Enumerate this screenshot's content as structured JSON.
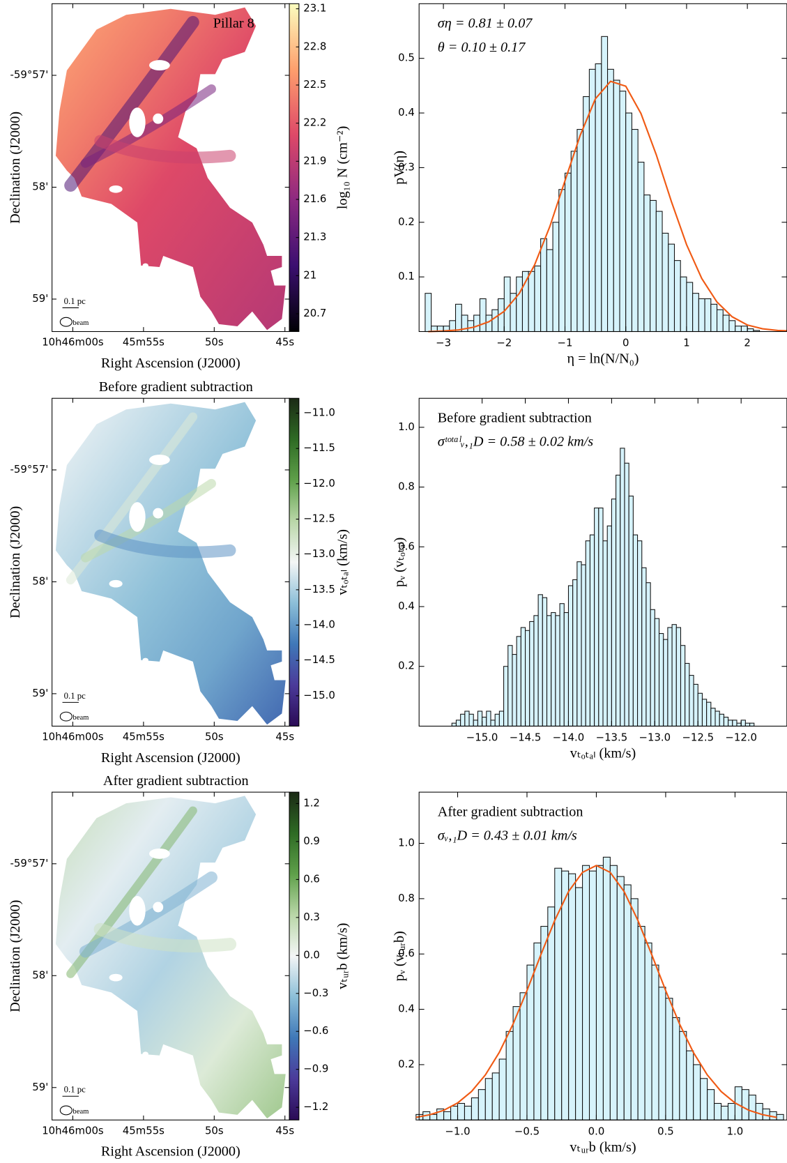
{
  "chart_data": [
    {
      "type": "map",
      "title": "Pillar 8",
      "title_position": "inside",
      "xlabel": "Right Ascension (J2000)",
      "ylabel": "Declination (J2000)",
      "xlim": [
        61.47,
        44.69
      ],
      "ylim": [
        -3599.29,
        -3596.36
      ],
      "xticks": [
        {
          "value": 60,
          "label": "10h46m00s"
        },
        {
          "value": 55,
          "label": "45m55s"
        },
        {
          "value": 50,
          "label": "50s"
        },
        {
          "value": 45,
          "label": "45s"
        }
      ],
      "yticks": [
        {
          "value": -3597,
          "label": "-59°57'"
        },
        {
          "value": -3598,
          "label": "58'"
        },
        {
          "value": -3599,
          "label": "59'"
        }
      ],
      "scalebar_label": "0.1 pc",
      "beam_label": "beam",
      "colorbar": {
        "label": "log₁₀ N (cm⁻²)",
        "clim": [
          20.56,
          23.14
        ],
        "ticks": [
          20.7,
          21.0,
          21.3,
          21.6,
          21.9,
          22.2,
          22.5,
          22.8,
          23.1
        ],
        "colormap": [
          "#000004",
          "#3b0f70",
          "#8c2981",
          "#de4968",
          "#fe9f6d",
          "#fcfdbf"
        ]
      }
    },
    {
      "type": "histogram",
      "xlabel": "η = ln(N/N₀)",
      "ylabel": "pV(η)",
      "annotations": [
        "ση = 0.81 ± 0.07",
        "θ = 0.10 ± 0.17"
      ],
      "color": "#d6f3fb",
      "edgecolor": "#111111",
      "xlim": [
        -3.4,
        2.65
      ],
      "ylim": [
        0,
        0.6
      ],
      "xticks": [
        {
          "value": -3,
          "label": "−3"
        },
        {
          "value": -2,
          "label": "−2"
        },
        {
          "value": -1,
          "label": "−1"
        },
        0,
        1,
        2
      ],
      "yticks": [
        0.1,
        0.2,
        0.3,
        0.4,
        0.5
      ],
      "bins": [
        -3.3,
        -3.2,
        -3.1,
        -3.0,
        -2.9,
        -2.8,
        -2.7,
        -2.6,
        -2.5,
        -2.4,
        -2.3,
        -2.2,
        -2.1,
        -2.0,
        -1.9,
        -1.8,
        -1.7,
        -1.6,
        -1.5,
        -1.4,
        -1.3,
        -1.2,
        -1.1,
        -1.0,
        -0.9,
        -0.8,
        -0.7,
        -0.6,
        -0.5,
        -0.4,
        -0.3,
        -0.2,
        -0.1,
        0.0,
        0.1,
        0.2,
        0.3,
        0.4,
        0.5,
        0.6,
        0.7,
        0.8,
        0.9,
        1.0,
        1.1,
        1.2,
        1.3,
        1.4,
        1.5,
        1.6,
        1.7,
        1.8,
        1.9,
        2.0,
        2.1,
        2.2
      ],
      "values": [
        0.07,
        0.01,
        0.01,
        0.01,
        0.02,
        0.05,
        0.03,
        0.02,
        0.03,
        0.06,
        0.03,
        0.04,
        0.06,
        0.1,
        0.07,
        0.1,
        0.11,
        0.11,
        0.12,
        0.17,
        0.15,
        0.2,
        0.26,
        0.29,
        0.33,
        0.37,
        0.43,
        0.48,
        0.49,
        0.54,
        0.48,
        0.46,
        0.44,
        0.4,
        0.37,
        0.31,
        0.25,
        0.24,
        0.22,
        0.18,
        0.16,
        0.13,
        0.1,
        0.09,
        0.07,
        0.06,
        0.06,
        0.05,
        0.04,
        0.03,
        0.02,
        0.01,
        0.01,
        0.005,
        0.002
      ],
      "fit": {
        "color": "#f05a14",
        "x": [
          -3.25,
          -3.0,
          -2.75,
          -2.5,
          -2.25,
          -2.0,
          -1.75,
          -1.5,
          -1.25,
          -1.0,
          -0.75,
          -0.5,
          -0.25,
          0.0,
          0.25,
          0.5,
          0.75,
          1.0,
          1.25,
          1.5,
          1.75,
          2.0,
          2.25,
          2.5,
          2.75
        ],
        "values": [
          0.0,
          0.001,
          0.003,
          0.008,
          0.018,
          0.037,
          0.07,
          0.122,
          0.192,
          0.276,
          0.359,
          0.426,
          0.458,
          0.449,
          0.399,
          0.324,
          0.238,
          0.159,
          0.097,
          0.054,
          0.027,
          0.012,
          0.005,
          0.002,
          0.001
        ]
      }
    },
    {
      "type": "map",
      "title": "Before gradient subtraction",
      "title_position": "above",
      "xlabel": "Right Ascension (J2000)",
      "ylabel": "Declination (J2000)",
      "xlim": [
        61.47,
        44.69
      ],
      "ylim": [
        -3599.29,
        -3596.36
      ],
      "xticks": [
        {
          "value": 60,
          "label": "10h46m00s"
        },
        {
          "value": 55,
          "label": "45m55s"
        },
        {
          "value": 50,
          "label": "50s"
        },
        {
          "value": 45,
          "label": "45s"
        }
      ],
      "yticks": [
        {
          "value": -3597,
          "label": "-59°57'"
        },
        {
          "value": -3598,
          "label": "58'"
        },
        {
          "value": -3599,
          "label": "59'"
        }
      ],
      "scalebar_label": "0.1 pc",
      "beam_label": "beam",
      "colorbar": {
        "label": "vₜₒₜₐₗ (km/s)",
        "clim": [
          -15.43,
          -10.79
        ],
        "ticks": [
          {
            "value": -15.0,
            "label": "−15.0"
          },
          {
            "value": -14.5,
            "label": "−14.5"
          },
          {
            "value": -14.0,
            "label": "−14.0"
          },
          {
            "value": -13.5,
            "label": "−13.5"
          },
          {
            "value": -13.0,
            "label": "−13.0"
          },
          {
            "value": -12.5,
            "label": "−12.5"
          },
          {
            "value": -12.0,
            "label": "−12.0"
          },
          {
            "value": -11.5,
            "label": "−11.5"
          },
          {
            "value": -11.0,
            "label": "−11.0"
          }
        ],
        "colormap": [
          "#2a0a55",
          "#4b3a9a",
          "#3f78b8",
          "#8cbfd8",
          "#f4f6f6",
          "#b9d7a8",
          "#5fa04a",
          "#2e6b24",
          "#1b2a15"
        ]
      }
    },
    {
      "type": "histogram",
      "xlabel": "vₜₒₜₐₗ (km/s)",
      "ylabel": "pᵥ (vₜₒₜₐₗ)",
      "annotations": [
        "Before gradient subtraction",
        "σᵗᵒᵗᵃˡᵥ,₁D = 0.58 ± 0.02 km/s"
      ],
      "color": "#d6f3fb",
      "edgecolor": "#111111",
      "xlim": [
        -15.73,
        -11.47
      ],
      "ylim": [
        0,
        1.097
      ],
      "xticks": [
        {
          "value": -15.0,
          "label": "−15.0"
        },
        {
          "value": -14.5,
          "label": "−14.5"
        },
        {
          "value": -14.0,
          "label": "−14.0"
        },
        {
          "value": -13.5,
          "label": "−13.5"
        },
        {
          "value": -13.0,
          "label": "−13.0"
        },
        {
          "value": -12.5,
          "label": "−12.5"
        },
        {
          "value": -12.0,
          "label": "−12.0"
        }
      ],
      "yticks": [
        0.2,
        0.4,
        0.6,
        0.8,
        {
          "value": 1,
          "label": "1.0"
        }
      ],
      "bins": [
        -15.35,
        -15.3,
        -15.25,
        -15.2,
        -15.15,
        -15.1,
        -15.05,
        -15.0,
        -14.95,
        -14.9,
        -14.85,
        -14.8,
        -14.75,
        -14.7,
        -14.65,
        -14.6,
        -14.55,
        -14.5,
        -14.45,
        -14.4,
        -14.35,
        -14.3,
        -14.25,
        -14.2,
        -14.15,
        -14.1,
        -14.05,
        -14.0,
        -13.95,
        -13.9,
        -13.85,
        -13.8,
        -13.75,
        -13.7,
        -13.65,
        -13.6,
        -13.55,
        -13.5,
        -13.45,
        -13.4,
        -13.35,
        -13.3,
        -13.25,
        -13.2,
        -13.15,
        -13.1,
        -13.05,
        -13.0,
        -12.95,
        -12.9,
        -12.85,
        -12.8,
        -12.75,
        -12.7,
        -12.65,
        -12.6,
        -12.55,
        -12.5,
        -12.45,
        -12.4,
        -12.35,
        -12.3,
        -12.25,
        -12.2,
        -12.15,
        -12.1,
        -12.05,
        -12.0,
        -11.95,
        -11.9,
        -11.85
      ],
      "values": [
        0.01,
        0.02,
        0.04,
        0.05,
        0.04,
        0.02,
        0.05,
        0.03,
        0.05,
        0.02,
        0.04,
        0.05,
        0.2,
        0.27,
        0.24,
        0.3,
        0.33,
        0.32,
        0.35,
        0.37,
        0.44,
        0.43,
        0.37,
        0.38,
        0.37,
        0.41,
        0.38,
        0.47,
        0.49,
        0.55,
        0.54,
        0.62,
        0.64,
        0.73,
        0.73,
        0.62,
        0.67,
        0.76,
        0.84,
        0.93,
        0.88,
        0.77,
        0.64,
        0.62,
        0.53,
        0.48,
        0.39,
        0.36,
        0.31,
        0.29,
        0.33,
        0.34,
        0.33,
        0.27,
        0.21,
        0.17,
        0.14,
        0.11,
        0.09,
        0.08,
        0.06,
        0.05,
        0.04,
        0.03,
        0.02,
        0.02,
        0.01,
        0.02,
        0.01,
        0.01
      ]
    },
    {
      "type": "map",
      "title": "After gradient subtraction",
      "title_position": "above",
      "xlabel": "Right Ascension (J2000)",
      "ylabel": "Declination (J2000)",
      "xlim": [
        61.47,
        44.69
      ],
      "ylim": [
        -3599.29,
        -3596.36
      ],
      "xticks": [
        {
          "value": 60,
          "label": "10h46m00s"
        },
        {
          "value": 55,
          "label": "45m55s"
        },
        {
          "value": 50,
          "label": "50s"
        },
        {
          "value": 45,
          "label": "45s"
        }
      ],
      "yticks": [
        {
          "value": -3597,
          "label": "-59°57'"
        },
        {
          "value": -3598,
          "label": "58'"
        },
        {
          "value": -3599,
          "label": "59'"
        }
      ],
      "scalebar_label": "0.1 pc",
      "beam_label": "beam",
      "colorbar": {
        "label": "vₜᵤᵣb (km/s)",
        "clim": [
          -1.3,
          1.29
        ],
        "ticks": [
          {
            "value": -1.2,
            "label": "−1.2"
          },
          {
            "value": -0.9,
            "label": "−0.9"
          },
          {
            "value": -0.6,
            "label": "−0.6"
          },
          {
            "value": -0.3,
            "label": "−0.3"
          },
          {
            "value": 0,
            "label": "0.0"
          },
          0.3,
          0.6,
          0.9,
          1.2
        ],
        "colormap": [
          "#2a0a55",
          "#4b3a9a",
          "#3f78b8",
          "#8cbfd8",
          "#f4f6f6",
          "#b9d7a8",
          "#5fa04a",
          "#2e6b24",
          "#1b2a15"
        ]
      }
    },
    {
      "type": "histogram",
      "xlabel": "vₜᵤᵣb (km/s)",
      "ylabel": "pᵥ (vₜᵤᵣb)",
      "annotations": [
        "After gradient subtraction",
        "σᵥ,₁D = 0.43 ± 0.01 km/s"
      ],
      "color": "#d6f3fb",
      "edgecolor": "#111111",
      "xlim": [
        -1.278,
        1.374
      ],
      "ylim": [
        0,
        1.185
      ],
      "xticks": [
        {
          "value": -1,
          "label": "−1.0"
        },
        {
          "value": -0.5,
          "label": "−0.5"
        },
        {
          "value": 0,
          "label": "0.0"
        },
        0.5,
        {
          "value": 1,
          "label": "1.0"
        }
      ],
      "yticks": [
        0.2,
        0.4,
        0.6,
        0.8,
        {
          "value": 1,
          "label": "1.0"
        }
      ],
      "bins": [
        -1.3,
        -1.25,
        -1.2,
        -1.15,
        -1.1,
        -1.05,
        -1.0,
        -0.95,
        -0.9,
        -0.85,
        -0.8,
        -0.75,
        -0.7,
        -0.65,
        -0.6,
        -0.55,
        -0.5,
        -0.45,
        -0.4,
        -0.35,
        -0.3,
        -0.25,
        -0.2,
        -0.15,
        -0.1,
        -0.05,
        0.0,
        0.05,
        0.1,
        0.15,
        0.2,
        0.25,
        0.3,
        0.35,
        0.4,
        0.45,
        0.5,
        0.55,
        0.6,
        0.65,
        0.7,
        0.75,
        0.8,
        0.85,
        0.9,
        0.95,
        1.0,
        1.05,
        1.1,
        1.15,
        1.2,
        1.25,
        1.3,
        1.35
      ],
      "values": [
        0.02,
        0.03,
        0.02,
        0.04,
        0.03,
        0.05,
        0.06,
        0.05,
        0.08,
        0.11,
        0.15,
        0.17,
        0.22,
        0.32,
        0.41,
        0.46,
        0.56,
        0.64,
        0.7,
        0.77,
        0.91,
        0.9,
        0.89,
        0.84,
        0.92,
        0.9,
        0.92,
        0.95,
        0.92,
        0.88,
        0.85,
        0.8,
        0.7,
        0.64,
        0.56,
        0.48,
        0.44,
        0.37,
        0.32,
        0.25,
        0.2,
        0.15,
        0.11,
        0.06,
        0.05,
        0.06,
        0.12,
        0.11,
        0.09,
        0.06,
        0.04,
        0.03,
        0.02
      ],
      "fit": {
        "color": "#f05a14",
        "x": [
          -1.3,
          -1.2,
          -1.1,
          -1.0,
          -0.9,
          -0.8,
          -0.7,
          -0.6,
          -0.5,
          -0.4,
          -0.3,
          -0.2,
          -0.1,
          0.0,
          0.1,
          0.2,
          0.3,
          0.4,
          0.5,
          0.6,
          0.7,
          0.8,
          0.9,
          1.0,
          1.1,
          1.2,
          1.3
        ],
        "values": [
          0.0095,
          0.019,
          0.035,
          0.0617,
          0.103,
          0.163,
          0.244,
          0.347,
          0.468,
          0.597,
          0.721,
          0.826,
          0.895,
          0.92,
          0.895,
          0.826,
          0.721,
          0.597,
          0.468,
          0.347,
          0.244,
          0.163,
          0.103,
          0.0617,
          0.035,
          0.019,
          0.0095
        ]
      }
    }
  ]
}
